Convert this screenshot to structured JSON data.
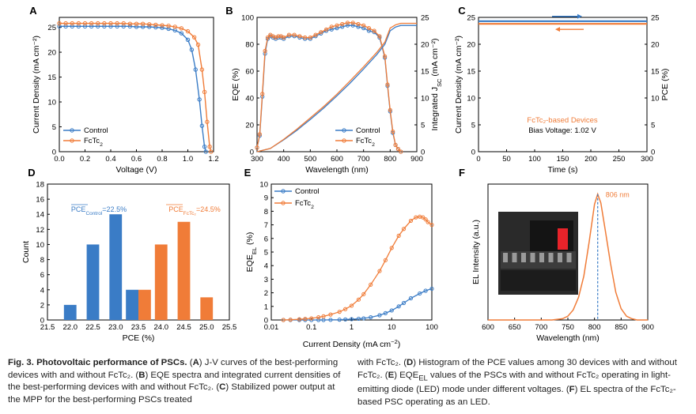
{
  "colors": {
    "control": "#3a7cc6",
    "fctc2": "#f07c38",
    "axis": "#000000",
    "led_bg": "#2a2a2a",
    "led_red": "#e8232a"
  },
  "chart_data": [
    {
      "panel": "A",
      "type": "line",
      "xlabel": "Voltage (V)",
      "ylabel": "Current Density (mA cm⁻²)",
      "xlim": [
        0,
        1.2
      ],
      "ylim": [
        0,
        27
      ],
      "xticks": [
        0.0,
        0.2,
        0.4,
        0.6,
        0.8,
        1.0,
        1.2
      ],
      "yticks": [
        0,
        5,
        10,
        15,
        20,
        25
      ],
      "legend": {
        "position": "bottom-left"
      },
      "series": [
        {
          "name": "Control",
          "color": "#3a7cc6",
          "x": [
            0,
            0.05,
            0.1,
            0.15,
            0.2,
            0.25,
            0.3,
            0.35,
            0.4,
            0.45,
            0.5,
            0.55,
            0.6,
            0.65,
            0.7,
            0.75,
            0.8,
            0.85,
            0.9,
            0.95,
            1.0,
            1.03,
            1.06,
            1.09,
            1.11,
            1.13,
            1.14
          ],
          "y": [
            25.2,
            25.2,
            25.2,
            25.2,
            25.2,
            25.2,
            25.2,
            25.2,
            25.2,
            25.2,
            25.2,
            25.2,
            25.1,
            25.1,
            25.1,
            25.0,
            24.9,
            24.7,
            24.4,
            23.8,
            22.5,
            20.5,
            16.5,
            10.5,
            5.2,
            1.0,
            0
          ]
        },
        {
          "name": "FcTc2",
          "color": "#f07c38",
          "x": [
            0,
            0.05,
            0.1,
            0.15,
            0.2,
            0.25,
            0.3,
            0.35,
            0.4,
            0.45,
            0.5,
            0.55,
            0.6,
            0.65,
            0.7,
            0.75,
            0.8,
            0.85,
            0.9,
            0.95,
            1.0,
            1.05,
            1.08,
            1.11,
            1.13,
            1.15,
            1.17,
            1.18
          ],
          "y": [
            25.8,
            25.8,
            25.8,
            25.8,
            25.8,
            25.8,
            25.8,
            25.8,
            25.8,
            25.8,
            25.8,
            25.7,
            25.7,
            25.7,
            25.6,
            25.5,
            25.4,
            25.3,
            25.1,
            24.8,
            24.2,
            23.0,
            21.5,
            16.5,
            12.0,
            6.0,
            1.0,
            0
          ]
        }
      ]
    },
    {
      "panel": "B",
      "type": "line",
      "xlabel": "Wavelength (nm)",
      "ylabel": "EQE (%)",
      "y2label": "Integrated J_SC (mA cm⁻²)",
      "xlim": [
        300,
        900
      ],
      "ylim": [
        0,
        100
      ],
      "y2lim": [
        0,
        25
      ],
      "xticks": [
        300,
        400,
        500,
        600,
        700,
        800,
        900
      ],
      "yticks": [
        0,
        20,
        40,
        60,
        80,
        100
      ],
      "y2ticks": [
        0,
        5,
        10,
        15,
        20,
        25
      ],
      "legend": {
        "position": "bottom-right"
      },
      "series": [
        {
          "name": "Control",
          "axis": "left",
          "color": "#3a7cc6",
          "x": [
            300,
            310,
            320,
            330,
            340,
            350,
            360,
            370,
            380,
            390,
            400,
            420,
            440,
            460,
            480,
            500,
            520,
            540,
            560,
            580,
            600,
            620,
            640,
            660,
            680,
            700,
            720,
            740,
            760,
            780,
            790,
            800,
            810,
            820,
            830,
            840
          ],
          "y": [
            3,
            12,
            41,
            73,
            84,
            86,
            85,
            84,
            85,
            85,
            84,
            86,
            86,
            85,
            84,
            84,
            86,
            88,
            90,
            91,
            92,
            93,
            94,
            94,
            93,
            92,
            90,
            89,
            85,
            70,
            49,
            30,
            14,
            5,
            2,
            0
          ]
        },
        {
          "name": "FcTc2",
          "axis": "left",
          "color": "#f07c38",
          "x": [
            300,
            310,
            320,
            330,
            340,
            350,
            360,
            370,
            380,
            390,
            400,
            420,
            440,
            460,
            480,
            500,
            520,
            540,
            560,
            580,
            600,
            620,
            640,
            660,
            680,
            700,
            720,
            740,
            760,
            780,
            790,
            800,
            810,
            820,
            830,
            840
          ],
          "y": [
            3,
            13,
            43,
            75,
            85,
            87,
            86,
            85,
            86,
            86,
            85,
            87,
            87,
            86,
            85,
            85,
            87,
            89,
            91,
            93,
            94,
            95,
            96,
            96,
            95,
            94,
            92,
            90,
            86,
            71,
            50,
            31,
            15,
            5,
            2,
            0
          ]
        },
        {
          "name": "Control J_SC",
          "axis": "right",
          "color": "#3a7cc6",
          "x": [
            300,
            350,
            400,
            450,
            500,
            550,
            600,
            650,
            700,
            750,
            780,
            800,
            820,
            840,
            900
          ],
          "y": [
            0,
            0.6,
            2.2,
            4.0,
            6.0,
            8.1,
            10.4,
            12.8,
            15.4,
            18.1,
            20.0,
            22.5,
            23.2,
            23.5,
            23.5
          ]
        },
        {
          "name": "FcTc2 J_SC",
          "axis": "right",
          "color": "#f07c38",
          "x": [
            300,
            350,
            400,
            450,
            500,
            550,
            600,
            650,
            700,
            750,
            780,
            800,
            820,
            840,
            900
          ],
          "y": [
            0,
            0.6,
            2.3,
            4.2,
            6.3,
            8.4,
            10.7,
            13.2,
            15.8,
            18.5,
            20.4,
            23.0,
            23.6,
            23.9,
            23.9
          ]
        }
      ]
    },
    {
      "panel": "C",
      "type": "line",
      "xlabel": "Time (s)",
      "ylabel": "Current Density (mA cm⁻²)",
      "y2label": "PCE (%)",
      "xlim": [
        0,
        300
      ],
      "ylim": [
        0,
        25
      ],
      "y2lim": [
        0,
        25
      ],
      "xticks": [
        0,
        50,
        100,
        150,
        200,
        250,
        300
      ],
      "yticks": [
        0,
        5,
        10,
        15,
        20,
        25
      ],
      "y2ticks": [
        0,
        5,
        10,
        15,
        20,
        25
      ],
      "annotations": [
        "FcTc₂-based Devices",
        "Bias Voltage: 1.02 V"
      ],
      "series": [
        {
          "name": "Current Density",
          "axis": "left",
          "color": "#f07c38",
          "x": [
            0,
            300
          ],
          "y": [
            23.8,
            23.8
          ]
        },
        {
          "name": "PCE",
          "axis": "right",
          "color": "#3a7cc6",
          "x": [
            0,
            300
          ],
          "y": [
            24.3,
            24.3
          ]
        }
      ]
    },
    {
      "panel": "D",
      "type": "bar",
      "xlabel": "PCE (%)",
      "ylabel": "Count",
      "xlim": [
        21.5,
        25.5
      ],
      "ylim": [
        0,
        18
      ],
      "xticks": [
        21.5,
        22.0,
        22.5,
        23.0,
        23.5,
        24.0,
        24.5,
        25.0,
        25.5
      ],
      "yticks": [
        0,
        2,
        4,
        6,
        8,
        10,
        12,
        14,
        16,
        18
      ],
      "annotations": [
        {
          "text": "PCE",
          "sub": "Control",
          "suffix": "=22.5%"
        },
        {
          "text": "PCE",
          "sub": "FcTc₂",
          "suffix": "=24.5%"
        }
      ],
      "series": [
        {
          "name": "Control",
          "color": "#3a7cc6",
          "x": [
            22.0,
            22.5,
            23.0,
            23.5
          ],
          "values": [
            2,
            10,
            14,
            4
          ]
        },
        {
          "name": "FcTc2",
          "color": "#f07c38",
          "x": [
            23.5,
            24.0,
            24.5,
            25.0
          ],
          "values": [
            4,
            10,
            13,
            3
          ]
        }
      ]
    },
    {
      "panel": "E",
      "type": "line",
      "xlabel": "Current Density (mA cm⁻²)",
      "ylabel": "EQE_EL (%)",
      "xscale": "log",
      "xlim": [
        0.01,
        100
      ],
      "ylim": [
        0,
        10
      ],
      "xticks": [
        0.01,
        0.1,
        1,
        10,
        100
      ],
      "xtick_labels": [
        "0.01",
        "0.1",
        "1",
        "10",
        "100"
      ],
      "yticks": [
        0,
        1,
        2,
        3,
        4,
        5,
        6,
        7,
        8,
        9,
        10
      ],
      "legend": {
        "position": "top-left"
      },
      "series": [
        {
          "name": "Control",
          "color": "#3a7cc6",
          "x": [
            0.02,
            0.03,
            0.05,
            0.07,
            0.1,
            0.15,
            0.2,
            0.3,
            0.5,
            0.7,
            1,
            1.5,
            2,
            3,
            5,
            7,
            10,
            15,
            20,
            30,
            50,
            70,
            100
          ],
          "y": [
            0,
            0,
            0,
            0,
            0,
            0,
            0,
            0.01,
            0.02,
            0.04,
            0.06,
            0.09,
            0.12,
            0.2,
            0.35,
            0.5,
            0.7,
            1.0,
            1.25,
            1.6,
            1.95,
            2.15,
            2.3
          ]
        },
        {
          "name": "FcTc2",
          "color": "#f07c38",
          "x": [
            0.02,
            0.03,
            0.05,
            0.07,
            0.1,
            0.15,
            0.2,
            0.3,
            0.5,
            0.7,
            1,
            1.5,
            2,
            3,
            5,
            7,
            10,
            15,
            20,
            30,
            40,
            50,
            60,
            70,
            80,
            100
          ],
          "y": [
            0,
            0.02,
            0.05,
            0.08,
            0.12,
            0.2,
            0.27,
            0.4,
            0.6,
            0.8,
            1.05,
            1.5,
            1.9,
            2.6,
            3.6,
            4.4,
            5.3,
            6.2,
            6.7,
            7.3,
            7.55,
            7.6,
            7.55,
            7.4,
            7.2,
            7.0
          ]
        }
      ]
    },
    {
      "panel": "F",
      "type": "line",
      "xlabel": "Wavelength (nm)",
      "ylabel": "EL Intensity (a.u.)",
      "xlim": [
        600,
        900
      ],
      "xticks": [
        600,
        650,
        700,
        750,
        800,
        850,
        900
      ],
      "annotations": [
        "806 nm"
      ],
      "peak_x": 806,
      "series": [
        {
          "name": "EL",
          "color": "#f07c38",
          "x": [
            600,
            720,
            740,
            750,
            760,
            770,
            780,
            790,
            800,
            806,
            812,
            820,
            830,
            840,
            850,
            860,
            870,
            880,
            900
          ],
          "y": [
            0,
            0,
            0.01,
            0.03,
            0.08,
            0.18,
            0.35,
            0.62,
            0.92,
            1.0,
            0.93,
            0.72,
            0.45,
            0.22,
            0.09,
            0.03,
            0.01,
            0,
            0
          ]
        }
      ]
    }
  ],
  "figure": {
    "panel_labels": [
      "A",
      "B",
      "C",
      "D",
      "E",
      "F"
    ],
    "legend_control": "Control",
    "legend_fctc2_base": "FcTc",
    "legend_fctc2_sub": "2"
  },
  "caption": {
    "left": [
      {
        "t": "Fig. 3. Photovoltaic performance of PSCs.",
        "b": true
      },
      {
        "t": " ("
      },
      {
        "t": "A",
        "b": true
      },
      {
        "t": ") J-V curves of the best-performing devices with and without FcTc₂. ("
      },
      {
        "t": "B",
        "b": true
      },
      {
        "t": ") EQE spectra and integrated current densities of the best-performing devices with and without FcTc₂. ("
      },
      {
        "t": "C",
        "b": true
      },
      {
        "t": ") Stabilized power output at the MPP for the best-performing PSCs treated"
      }
    ],
    "right": [
      {
        "t": "with FcTc₂. ("
      },
      {
        "t": "D",
        "b": true
      },
      {
        "t": ") Histogram of the PCE values among 30 devices with and without FcTc₂. ("
      },
      {
        "t": "E",
        "b": true
      },
      {
        "t": ") EQE"
      },
      {
        "t": "EL",
        "sub": true
      },
      {
        "t": " values of the PSCs with and without FcTc₂ operating in light-emitting diode (LED) mode under different voltages. ("
      },
      {
        "t": "F",
        "b": true
      },
      {
        "t": ") EL spectra of the FcTc₂-based PSC operating as an LED."
      }
    ]
  }
}
